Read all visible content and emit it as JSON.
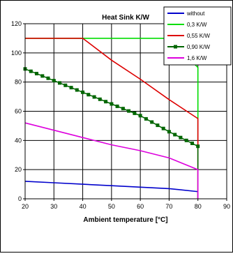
{
  "chart_data": {
    "type": "line",
    "title": "Heat Sink K/W",
    "xlabel": "Ambient temperature [°C]",
    "ylabel": "",
    "xlim": [
      20,
      90
    ],
    "ylim": [
      0,
      120
    ],
    "x_ticks": [
      20,
      30,
      40,
      50,
      60,
      70,
      80,
      90
    ],
    "y_ticks": [
      0,
      20,
      40,
      60,
      80,
      100,
      120
    ],
    "grid": true,
    "legend_position": "top-right",
    "series": [
      {
        "name": "without",
        "color": "#0000cc",
        "marker": "none",
        "x": [
          20,
          30,
          40,
          50,
          60,
          70,
          79.5,
          80,
          80
        ],
        "y": [
          12,
          11,
          10,
          9,
          8,
          7,
          5,
          5,
          0
        ]
      },
      {
        "name": "0,3 K/W",
        "color": "#00dd00",
        "marker": "none",
        "x": [
          20,
          40,
          50,
          60,
          70,
          80,
          80
        ],
        "y": [
          110,
          110,
          110,
          110,
          110,
          90,
          0
        ]
      },
      {
        "name": "0,55 K/W",
        "color": "#dd0000",
        "marker": "none",
        "x": [
          20,
          30,
          40,
          50,
          60,
          70,
          80,
          80
        ],
        "y": [
          110,
          110,
          110,
          95,
          82,
          68,
          55,
          0
        ]
      },
      {
        "name": "0,90 K/W",
        "color": "#006600",
        "marker": "square",
        "x": [
          20,
          30,
          40,
          50,
          60,
          70,
          80,
          80
        ],
        "y": [
          89,
          81,
          73,
          65,
          57,
          46,
          36,
          0
        ]
      },
      {
        "name": "1,6 K/W",
        "color": "#dd00dd",
        "marker": "none",
        "x": [
          20,
          30,
          40,
          50,
          60,
          70,
          80,
          80
        ],
        "y": [
          52,
          47,
          42,
          37,
          33,
          28,
          20,
          0
        ]
      }
    ]
  }
}
